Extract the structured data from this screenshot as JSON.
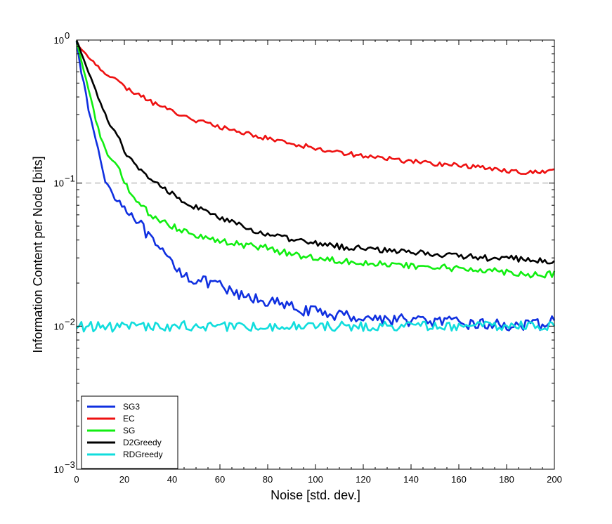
{
  "chart_data": {
    "type": "line",
    "xlabel": "Noise [std. dev.]",
    "ylabel": "Information Content per Node [bits]",
    "xlim": [
      0,
      200
    ],
    "ylim": [
      0.001,
      1
    ],
    "yscale": "log",
    "x_ticks": [
      {
        "value": 0,
        "label": "0"
      },
      {
        "value": 20,
        "label": "20"
      },
      {
        "value": 40,
        "label": "40"
      },
      {
        "value": 60,
        "label": "60"
      },
      {
        "value": 80,
        "label": "80"
      },
      {
        "value": 100,
        "label": "100"
      },
      {
        "value": 120,
        "label": "120"
      },
      {
        "value": 140,
        "label": "140"
      },
      {
        "value": 160,
        "label": "160"
      },
      {
        "value": 180,
        "label": "180"
      },
      {
        "value": 200,
        "label": "200"
      }
    ],
    "y_ticks": [
      {
        "value": 0.001,
        "base": "10",
        "exp": "−3"
      },
      {
        "value": 0.01,
        "base": "10",
        "exp": "−2"
      },
      {
        "value": 0.1,
        "base": "10",
        "exp": "−1"
      },
      {
        "value": 1,
        "base": "10",
        "exp": "0"
      }
    ],
    "reference_line": {
      "y": 0.1,
      "style": "dashed",
      "color": "#999999"
    },
    "grid": false,
    "legend_position": "bottom-left",
    "x": [
      0,
      2,
      5,
      8,
      10,
      12,
      15,
      18,
      20,
      25,
      30,
      35,
      40,
      45,
      50,
      55,
      60,
      65,
      70,
      75,
      80,
      90,
      100,
      110,
      120,
      130,
      140,
      150,
      160,
      170,
      180,
      190,
      200
    ],
    "series": [
      {
        "name": "SG3",
        "color": "#1030e0",
        "values": [
          1.0,
          0.6,
          0.33,
          0.2,
          0.145,
          0.105,
          0.085,
          0.075,
          0.067,
          0.057,
          0.042,
          0.033,
          0.028,
          0.023,
          0.021,
          0.02,
          0.019,
          0.017,
          0.016,
          0.0155,
          0.015,
          0.0135,
          0.0125,
          0.012,
          0.0115,
          0.0112,
          0.011,
          0.0108,
          0.0105,
          0.0103,
          0.0102,
          0.01,
          0.0108
        ]
      },
      {
        "name": "EC",
        "color": "#ee1111",
        "values": [
          0.95,
          0.85,
          0.76,
          0.68,
          0.63,
          0.59,
          0.55,
          0.5,
          0.47,
          0.42,
          0.38,
          0.345,
          0.32,
          0.295,
          0.275,
          0.26,
          0.245,
          0.235,
          0.225,
          0.215,
          0.205,
          0.19,
          0.175,
          0.165,
          0.155,
          0.148,
          0.142,
          0.137,
          0.133,
          0.128,
          0.123,
          0.118,
          0.122
        ]
      },
      {
        "name": "SG",
        "color": "#11ee11",
        "values": [
          1.0,
          0.72,
          0.45,
          0.28,
          0.21,
          0.17,
          0.14,
          0.125,
          0.1,
          0.075,
          0.062,
          0.055,
          0.05,
          0.047,
          0.044,
          0.041,
          0.039,
          0.038,
          0.037,
          0.036,
          0.035,
          0.032,
          0.03,
          0.029,
          0.028,
          0.027,
          0.026,
          0.026,
          0.025,
          0.025,
          0.024,
          0.023,
          0.023
        ]
      },
      {
        "name": "D2Greedy",
        "color": "#000000",
        "values": [
          1.0,
          0.8,
          0.6,
          0.45,
          0.36,
          0.3,
          0.24,
          0.2,
          0.165,
          0.13,
          0.11,
          0.095,
          0.085,
          0.075,
          0.068,
          0.062,
          0.057,
          0.053,
          0.049,
          0.046,
          0.044,
          0.04,
          0.038,
          0.036,
          0.035,
          0.034,
          0.033,
          0.032,
          0.031,
          0.03,
          0.03,
          0.029,
          0.028
        ]
      },
      {
        "name": "RDGreedy",
        "color": "#11dddd",
        "values": [
          0.01,
          0.0099,
          0.01,
          0.0098,
          0.01,
          0.0101,
          0.0099,
          0.01,
          0.0098,
          0.01,
          0.0099,
          0.01,
          0.0099,
          0.0101,
          0.0098,
          0.01,
          0.0099,
          0.01,
          0.01,
          0.0099,
          0.01,
          0.0099,
          0.0101,
          0.01,
          0.0099,
          0.01,
          0.01,
          0.0099,
          0.01,
          0.0099,
          0.0101,
          0.01,
          0.01
        ]
      }
    ]
  }
}
